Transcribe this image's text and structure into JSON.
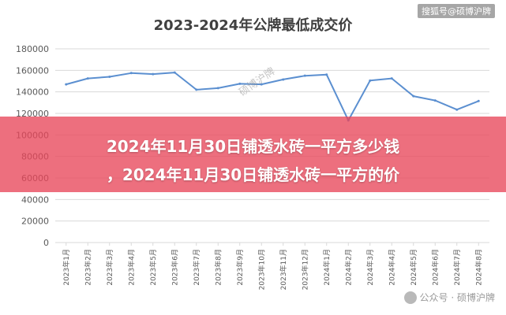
{
  "source_tag": "搜狐号@硕博沪牌",
  "banner": {
    "line1": "2024年11月30日铺透水砖一平方多少钱",
    "line2": "，2024年11月30日铺透水砖一平方的价"
  },
  "watermarks": {
    "center": "硕博沪牌",
    "bottom": "公众号 · 硕博沪牌"
  },
  "colors": {
    "line": "#5b8fd0",
    "grid": "#d9d9d9",
    "axis_text": "#595959",
    "banner": "#e8465a"
  },
  "chart_data": {
    "type": "line",
    "title": "2023-2024年公牌最低成交价",
    "xlabel": "",
    "ylabel": "",
    "ylim": [
      0,
      180000
    ],
    "yticks": [
      "0",
      "20000",
      "40000",
      "60000",
      "80000",
      "100000",
      "120000",
      "140000",
      "160000",
      "180000"
    ],
    "grid": true,
    "categories": [
      "2023年1月",
      "2023年2月",
      "2023年3月",
      "2023年4月",
      "2023年5月",
      "2023年6月",
      "2023年7月",
      "2023年8月",
      "2023年9月",
      "2023年10月",
      "2023年11月",
      "2023年12月",
      "2024年1月",
      "2024年2月",
      "2024年3月",
      "2024年4月",
      "2024年5月",
      "2024年6月",
      "2024年7月",
      "2024年8月"
    ],
    "series": [
      {
        "values": [
          147000,
          152500,
          154000,
          157500,
          156500,
          158000,
          142000,
          143500,
          147500,
          147000,
          151500,
          155000,
          156000,
          113500,
          150500,
          152500,
          136000,
          132000,
          123500,
          131500
        ]
      }
    ]
  }
}
